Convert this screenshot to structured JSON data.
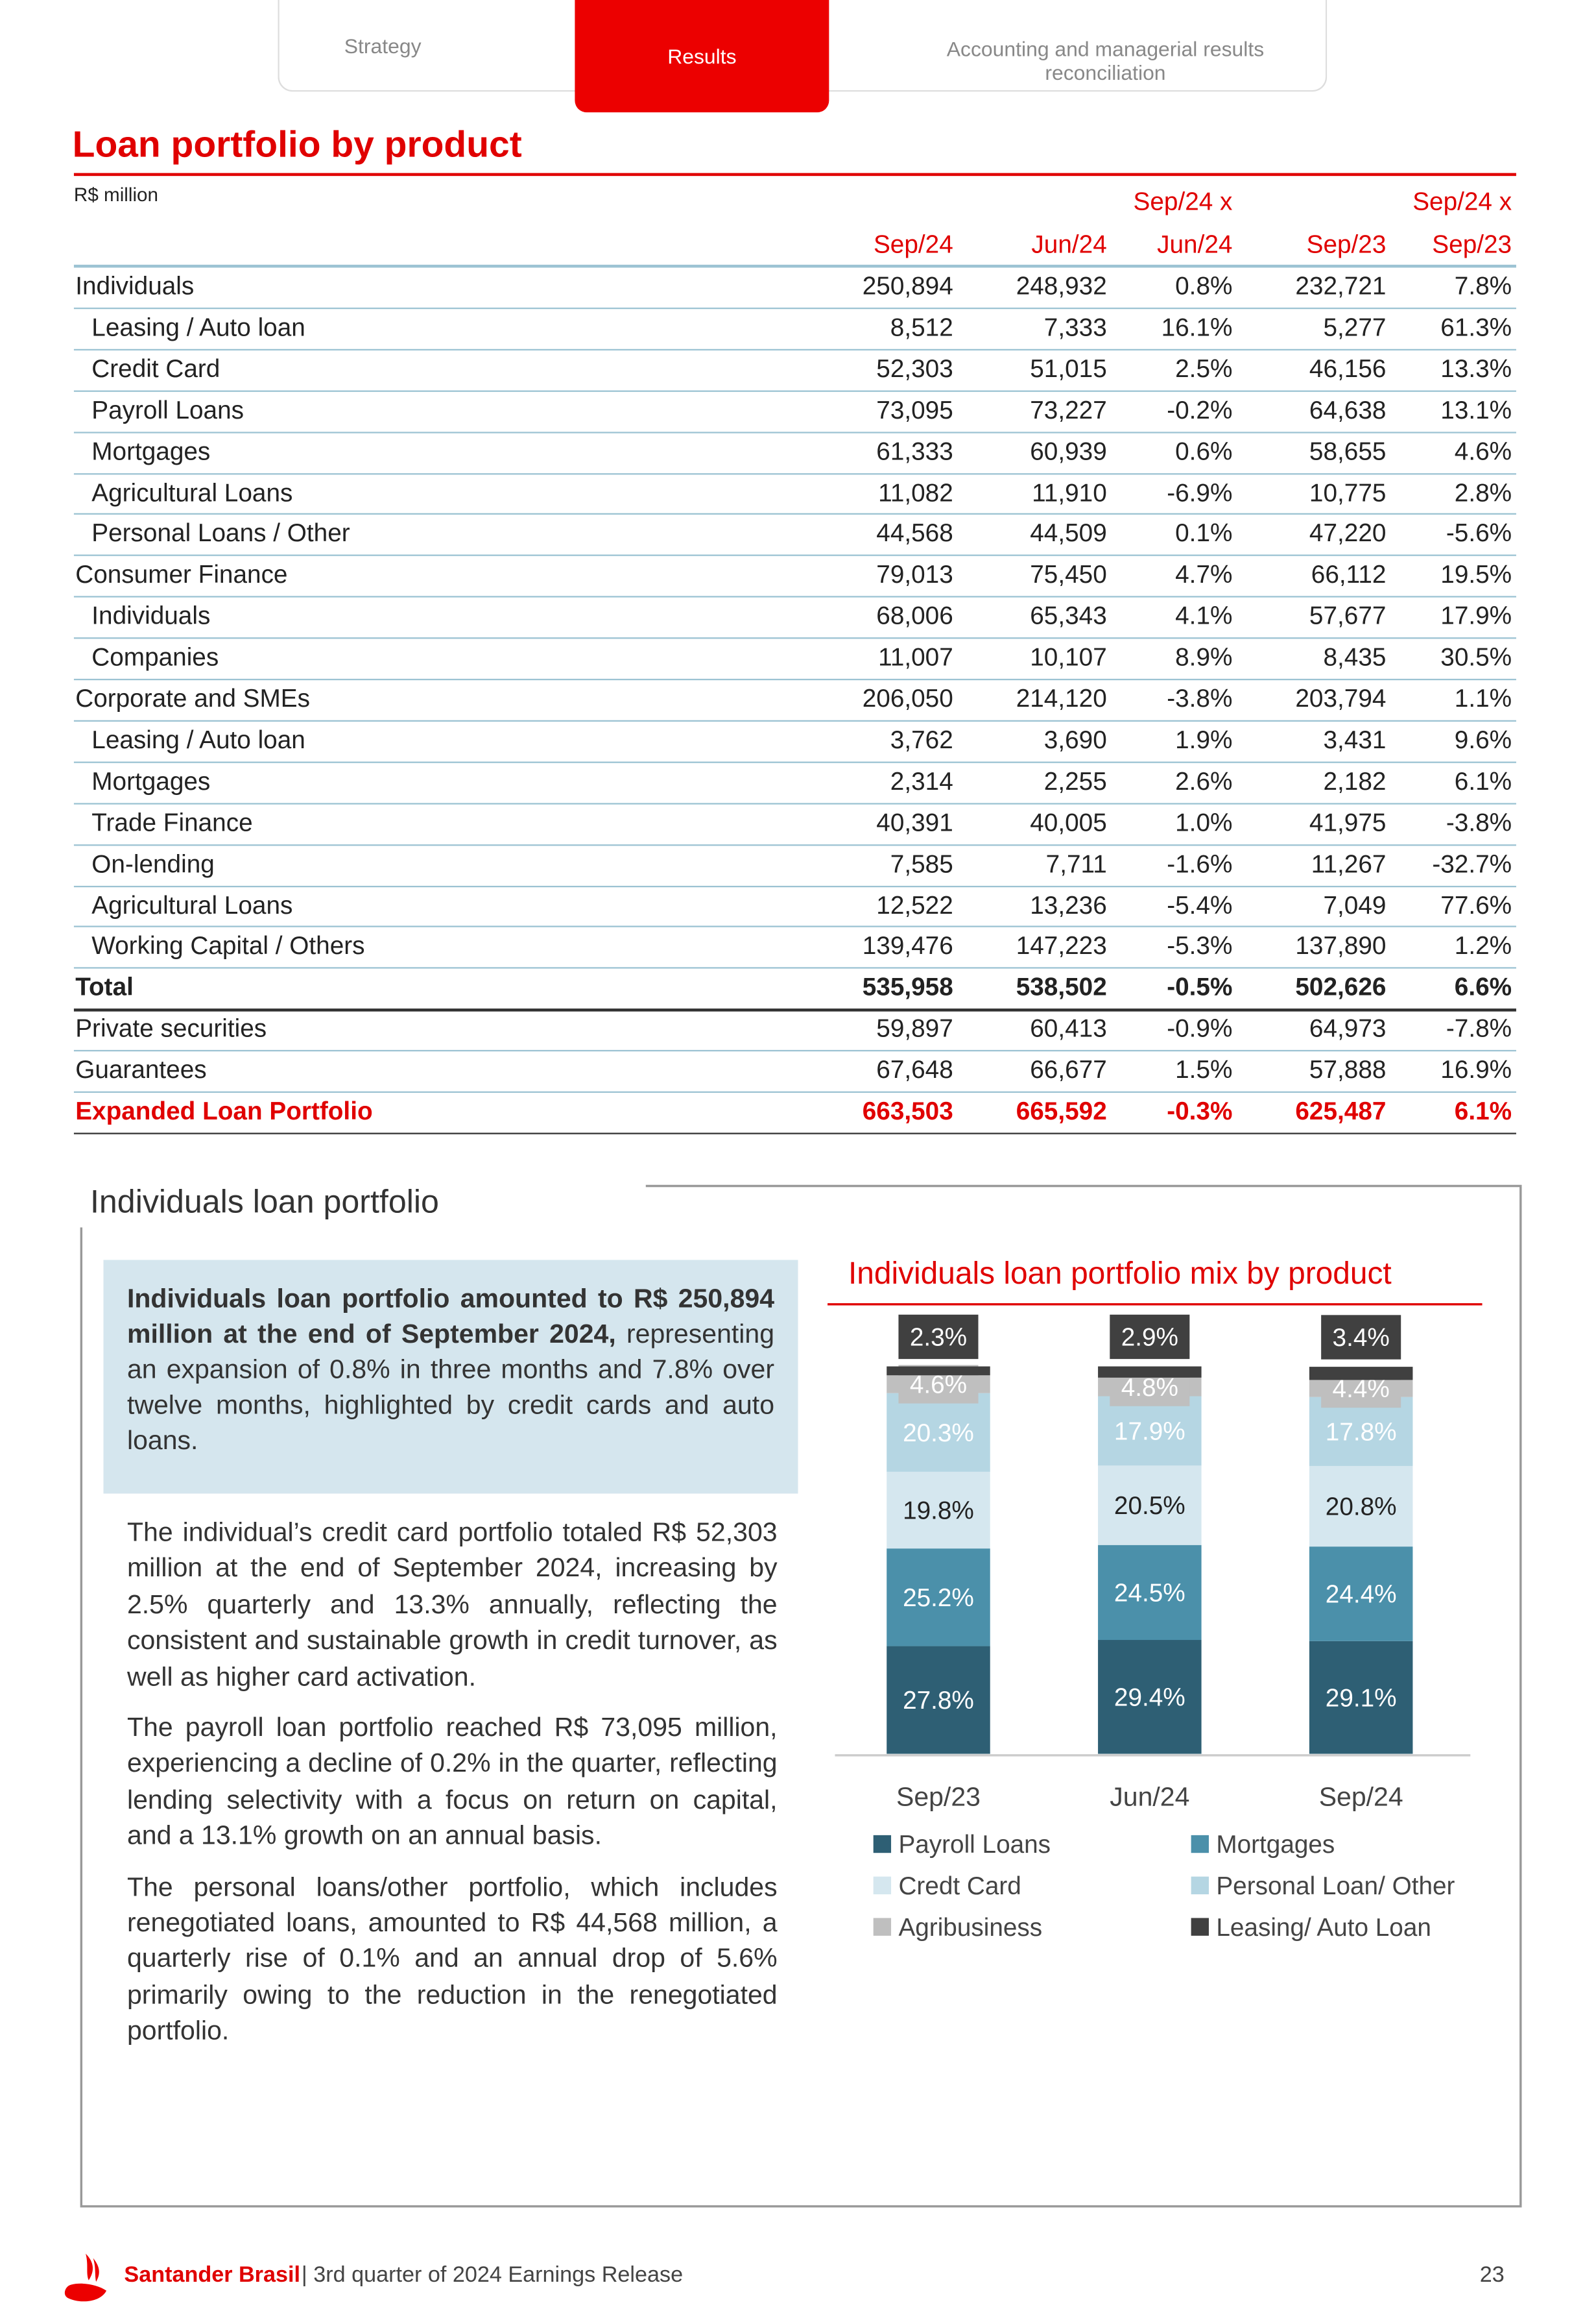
{
  "header": {
    "tabs": [
      "Strategy",
      "Results",
      "Accounting and managerial results reconciliation"
    ]
  },
  "table": {
    "title": "Loan portfolio by product",
    "unit": "R$ million",
    "columns": [
      "Sep/24",
      "Jun/24",
      "Sep/24 x Jun/24",
      "Sep/23",
      "Sep/24 x Sep/23"
    ],
    "rows": [
      {
        "label": "Individuals",
        "style": "group",
        "cells": [
          "250,894",
          "248,932",
          "0.8%",
          "232,721",
          "7.8%"
        ]
      },
      {
        "label": "Leasing / Auto loan",
        "style": "item",
        "cells": [
          "8,512",
          "7,333",
          "16.1%",
          "5,277",
          "61.3%"
        ]
      },
      {
        "label": "Credit Card",
        "style": "item",
        "cells": [
          "52,303",
          "51,015",
          "2.5%",
          "46,156",
          "13.3%"
        ]
      },
      {
        "label": "Payroll Loans",
        "style": "item",
        "cells": [
          "73,095",
          "73,227",
          "-0.2%",
          "64,638",
          "13.1%"
        ]
      },
      {
        "label": "Mortgages",
        "style": "item",
        "cells": [
          "61,333",
          "60,939",
          "0.6%",
          "58,655",
          "4.6%"
        ]
      },
      {
        "label": "Agricultural Loans",
        "style": "item",
        "cells": [
          "11,082",
          "11,910",
          "-6.9%",
          "10,775",
          "2.8%"
        ]
      },
      {
        "label": "Personal Loans / Other",
        "style": "item",
        "cells": [
          "44,568",
          "44,509",
          "0.1%",
          "47,220",
          "-5.6%"
        ]
      },
      {
        "label": "Consumer Finance",
        "style": "group",
        "cells": [
          "79,013",
          "75,450",
          "4.7%",
          "66,112",
          "19.5%"
        ]
      },
      {
        "label": "Individuals",
        "style": "item",
        "cells": [
          "68,006",
          "65,343",
          "4.1%",
          "57,677",
          "17.9%"
        ]
      },
      {
        "label": "Companies",
        "style": "item",
        "cells": [
          "11,007",
          "10,107",
          "8.9%",
          "8,435",
          "30.5%"
        ]
      },
      {
        "label": "Corporate and SMEs",
        "style": "group",
        "cells": [
          "206,050",
          "214,120",
          "-3.8%",
          "203,794",
          "1.1%"
        ]
      },
      {
        "label": "Leasing / Auto loan",
        "style": "item",
        "cells": [
          "3,762",
          "3,690",
          "1.9%",
          "3,431",
          "9.6%"
        ]
      },
      {
        "label": "Mortgages",
        "style": "item",
        "cells": [
          "2,314",
          "2,255",
          "2.6%",
          "2,182",
          "6.1%"
        ]
      },
      {
        "label": "Trade Finance",
        "style": "item",
        "cells": [
          "40,391",
          "40,005",
          "1.0%",
          "41,975",
          "-3.8%"
        ]
      },
      {
        "label": "On-lending",
        "style": "item",
        "cells": [
          "7,585",
          "7,711",
          "-1.6%",
          "11,267",
          "-32.7%"
        ]
      },
      {
        "label": "Agricultural Loans",
        "style": "item",
        "cells": [
          "12,522",
          "13,236",
          "-5.4%",
          "7,049",
          "77.6%"
        ]
      },
      {
        "label": "Working Capital / Others",
        "style": "item",
        "cells": [
          "139,476",
          "147,223",
          "-5.3%",
          "137,890",
          "1.2%"
        ]
      },
      {
        "label": "Total",
        "style": "total",
        "cells": [
          "535,958",
          "538,502",
          "-0.5%",
          "502,626",
          "6.6%"
        ]
      },
      {
        "label": "Private securities",
        "style": "group",
        "cells": [
          "59,897",
          "60,413",
          "-0.9%",
          "64,973",
          "-7.8%"
        ]
      },
      {
        "label": "Guarantees",
        "style": "group",
        "cells": [
          "67,648",
          "66,677",
          "1.5%",
          "57,888",
          "16.9%"
        ]
      },
      {
        "label": "Expanded Loan Portfolio",
        "style": "expanded",
        "cells": [
          "663,503",
          "665,592",
          "-0.3%",
          "625,487",
          "6.1%"
        ]
      }
    ]
  },
  "section": {
    "title": "Individuals loan portfolio",
    "highlight": {
      "bold": "Individuals loan portfolio amounted to R$ 250,894 million at the end of September 2024,",
      "text": "representing an expansion of 0.8% in three months and 7.8% over twelve months, highlighted by credit cards and auto loans."
    },
    "paragraphs": [
      "The individual’s credit card portfolio totaled R$ 52,303 million at the end of September 2024, increasing by 2.5% quarterly and 13.3% annually, reflecting the consistent and sustainable growth in credit turnover, as well as higher card activation.",
      "The payroll loan portfolio reached R$ 73,095 million, experiencing a decline of 0.2% in the quarter, reflecting lending selectivity with a focus on return on capital, and a 13.1% growth on an annual basis.",
      "The personal loans/other portfolio, which includes renegotiated loans, amounted to R$ 44,568 million, a quarterly rise of 0.1% and an annual drop of 5.6% primarily owing to the reduction in the renegotiated portfolio."
    ]
  },
  "chart_data": {
    "type": "bar",
    "stacked": true,
    "title": "Individuals loan portfolio mix by product",
    "categories": [
      "Sep/23",
      "Jun/24",
      "Sep/24"
    ],
    "ylim": [
      0,
      100
    ],
    "series": [
      {
        "name": "Payroll Loans",
        "color": "#2e5f74",
        "values": [
          27.8,
          29.4,
          29.1
        ],
        "value_labels": [
          "27.8%",
          "29.4%",
          "29.1%"
        ]
      },
      {
        "name": "Mortgages",
        "color": "#4b90aa",
        "values": [
          25.2,
          24.5,
          24.4
        ],
        "value_labels": [
          "25.2%",
          "24.5%",
          "24.4%"
        ]
      },
      {
        "name": "Credt Card",
        "color": "#d5e7ef",
        "values": [
          19.8,
          20.5,
          20.8
        ],
        "value_labels": [
          "19.8%",
          "20.5%",
          "20.8%"
        ]
      },
      {
        "name": "Personal Loan/ Other",
        "color": "#b5d6e3",
        "values": [
          20.3,
          17.9,
          17.8
        ],
        "value_labels": [
          "20.3%",
          "17.9%",
          "17.8%"
        ]
      },
      {
        "name": "Agribusiness",
        "color": "#bfbfbf",
        "values": [
          4.6,
          4.8,
          4.4
        ],
        "value_labels": [
          "4.6%",
          "4.8%",
          "4.4%"
        ]
      },
      {
        "name": "Leasing/ Auto Loan",
        "color": "#404040",
        "values": [
          2.3,
          2.9,
          3.4
        ],
        "value_labels": [
          "2.3%",
          "2.9%",
          "3.4%"
        ]
      }
    ]
  },
  "footer": {
    "brand": "Santander Brasil",
    "text": "| 3rd quarter of 2024 Earnings Release",
    "page": "23"
  }
}
